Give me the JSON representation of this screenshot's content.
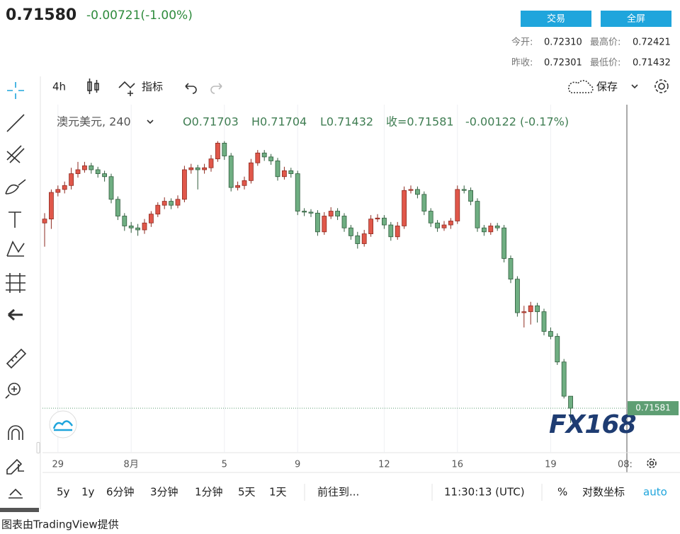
{
  "header": {
    "price": "0.71580",
    "change": "-0.00721(-1.00%)",
    "buttons": [
      "交易",
      "全屏"
    ],
    "stats": [
      {
        "label": "今开:",
        "value": "0.72310"
      },
      {
        "label": "最高价:",
        "value": "0.72421"
      },
      {
        "label": "昨收:",
        "value": "0.72301"
      },
      {
        "label": "最低价:",
        "value": "0.71432"
      }
    ]
  },
  "toolbar": {
    "interval": "4h",
    "indicators": "指标",
    "save": "保存"
  },
  "legend": {
    "symbol": "澳元美元, 240",
    "open": "O0.71703",
    "high": "H0.71704",
    "low": "L0.71432",
    "close": "收=0.71581",
    "change": "-0.00122 (-0.17%)"
  },
  "time_axis_partial": "08:",
  "watermark": "FX168",
  "bottom_bar": {
    "ranges": [
      "5y",
      "1y",
      "6分钟",
      "3分钟",
      "1分钟",
      "5天",
      "1天"
    ],
    "goto": "前往到...",
    "clock": "11:30:13 (UTC)",
    "percent": "%",
    "log": "对数坐标",
    "auto": "auto"
  },
  "footer": "图表由TradingView提供",
  "chart_data": {
    "type": "candlestick",
    "up_color": "#e0574a",
    "down_color": "#6fae82",
    "line_color": "#5e9e73",
    "ylim": [
      0.7113,
      0.7466
    ],
    "categories": [
      null,
      null,
      "29",
      null,
      null,
      null,
      null,
      null,
      null,
      null,
      null,
      null,
      null,
      "8月",
      null,
      null,
      null,
      null,
      null,
      null,
      null,
      null,
      null,
      null,
      null,
      null,
      null,
      "5",
      null,
      null,
      null,
      null,
      null,
      null,
      null,
      null,
      null,
      null,
      "9",
      null,
      null,
      null,
      null,
      null,
      null,
      null,
      null,
      null,
      null,
      null,
      null,
      "12",
      null,
      null,
      null,
      null,
      null,
      null,
      null,
      null,
      null,
      null,
      "16",
      null,
      null,
      null,
      null,
      null,
      null,
      null,
      null,
      null,
      null,
      null,
      null,
      null,
      "19",
      null,
      null,
      null
    ],
    "open": [
      0.7346,
      0.735,
      0.7377,
      0.738,
      0.7384,
      0.7396,
      0.74,
      0.7404,
      0.74,
      0.7396,
      0.7393,
      0.737,
      0.7353,
      0.7343,
      0.7341,
      0.7339,
      0.7346,
      0.7355,
      0.7364,
      0.7368,
      0.7364,
      0.737,
      0.74,
      0.7402,
      0.74,
      0.7402,
      0.7411,
      0.7427,
      0.7414,
      0.7382,
      0.7384,
      0.7389,
      0.7407,
      0.7417,
      0.7413,
      0.7409,
      0.7393,
      0.7399,
      0.7396,
      0.7358,
      0.7357,
      0.7356,
      0.7337,
      0.7353,
      0.7358,
      0.7353,
      0.7341,
      0.7333,
      0.7325,
      0.7335,
      0.735,
      0.7351,
      0.7344,
      0.7332,
      0.7343,
      0.7379,
      0.738,
      0.7375,
      0.7358,
      0.7346,
      0.7341,
      0.7344,
      0.7348,
      0.738,
      0.7379,
      0.7368,
      0.7341,
      0.7337,
      0.7343,
      0.7341,
      0.731,
      0.7289,
      0.7255,
      0.7256,
      0.7262,
      0.7256,
      0.7236,
      0.7231,
      0.7205,
      0.71703
    ],
    "high": [
      0.7356,
      0.738,
      0.7384,
      0.7388,
      0.7402,
      0.7408,
      0.7408,
      0.7407,
      0.7403,
      0.7399,
      0.7396,
      0.7373,
      0.7356,
      0.7347,
      0.7345,
      0.735,
      0.7358,
      0.7367,
      0.7372,
      0.7371,
      0.7374,
      0.7404,
      0.7406,
      0.7405,
      0.7406,
      0.7415,
      0.7429,
      0.7429,
      0.7417,
      0.7388,
      0.7393,
      0.7411,
      0.742,
      0.742,
      0.7416,
      0.7412,
      0.7403,
      0.7402,
      0.7399,
      0.7361,
      0.736,
      0.7359,
      0.7357,
      0.7362,
      0.7361,
      0.7356,
      0.7344,
      0.7337,
      0.7339,
      0.7354,
      0.7355,
      0.7354,
      0.7347,
      0.7347,
      0.7383,
      0.7384,
      0.7383,
      0.7378,
      0.7361,
      0.7349,
      0.7348,
      0.7351,
      0.7384,
      0.7384,
      0.7382,
      0.7371,
      0.7344,
      0.7346,
      0.7346,
      0.7344,
      0.7313,
      0.7292,
      0.7262,
      0.7266,
      0.7265,
      0.7259,
      0.724,
      0.7234,
      0.7208,
      0.71704
    ],
    "low": [
      0.7322,
      0.734,
      0.7373,
      0.7376,
      0.738,
      0.7392,
      0.7397,
      0.7396,
      0.7392,
      0.7388,
      0.7366,
      0.7349,
      0.7338,
      0.7336,
      0.7333,
      0.7335,
      0.7342,
      0.7352,
      0.736,
      0.736,
      0.7361,
      0.7367,
      0.7396,
      0.738,
      0.7396,
      0.7398,
      0.7408,
      0.741,
      0.7378,
      0.7379,
      0.738,
      0.7386,
      0.7404,
      0.7409,
      0.7405,
      0.7389,
      0.739,
      0.7392,
      0.7354,
      0.7353,
      0.7352,
      0.7333,
      0.7334,
      0.735,
      0.7349,
      0.7337,
      0.7329,
      0.732,
      0.7322,
      0.7332,
      0.7347,
      0.734,
      0.7328,
      0.7329,
      0.734,
      0.7376,
      0.7371,
      0.7354,
      0.7342,
      0.7337,
      0.7338,
      0.734,
      0.7345,
      0.7376,
      0.7364,
      0.7337,
      0.7333,
      0.7334,
      0.7338,
      0.7306,
      0.7285,
      0.7251,
      0.724,
      0.7243,
      0.7245,
      0.7232,
      0.7228,
      0.7202,
      0.7168,
      0.71432
    ],
    "close": [
      0.735,
      0.7377,
      0.738,
      0.7384,
      0.7396,
      0.74,
      0.7404,
      0.74,
      0.7396,
      0.7393,
      0.737,
      0.7353,
      0.7343,
      0.7341,
      0.7339,
      0.7346,
      0.7355,
      0.7364,
      0.7368,
      0.7364,
      0.737,
      0.74,
      0.7402,
      0.74,
      0.7402,
      0.7411,
      0.7427,
      0.7414,
      0.7382,
      0.7384,
      0.7389,
      0.7407,
      0.7417,
      0.7413,
      0.7409,
      0.7393,
      0.7399,
      0.7396,
      0.7358,
      0.7357,
      0.7356,
      0.7337,
      0.7353,
      0.7358,
      0.7353,
      0.7341,
      0.7333,
      0.7325,
      0.7335,
      0.735,
      0.7351,
      0.7344,
      0.7332,
      0.7343,
      0.7379,
      0.738,
      0.7375,
      0.7358,
      0.7346,
      0.7341,
      0.7344,
      0.7348,
      0.738,
      0.7379,
      0.7368,
      0.7341,
      0.7337,
      0.7343,
      0.7341,
      0.731,
      0.7289,
      0.7255,
      0.7256,
      0.7262,
      0.7256,
      0.7236,
      0.7231,
      0.7205,
      0.71703,
      0.71581
    ]
  }
}
